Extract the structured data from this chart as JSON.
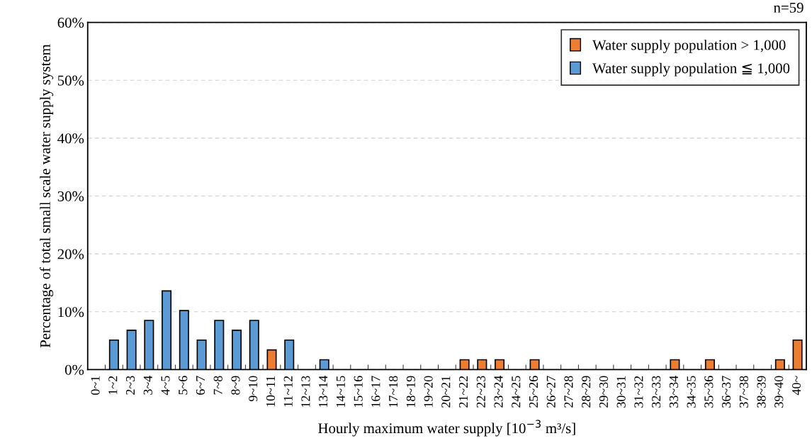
{
  "chart_data": {
    "type": "bar",
    "stacked": true,
    "xlabel": "Hourly maximum water supply [10$^{−3}$ m³/s]",
    "ylabel": "Percentage of total small scale water supply system",
    "annotations": [
      "n=59"
    ],
    "categories": [
      "0~1",
      "1~2",
      "2~3",
      "3~4",
      "4~5",
      "5~6",
      "6~7",
      "7~8",
      "8~9",
      "9~10",
      "10~11",
      "11~12",
      "12~13",
      "13~14",
      "14~15",
      "15~16",
      "16~17",
      "17~18",
      "18~19",
      "19~20",
      "20~21",
      "21~22",
      "22~23",
      "23~24",
      "24~25",
      "25~26",
      "26~27",
      "27~28",
      "28~29",
      "29~30",
      "30~31",
      "31~32",
      "32~33",
      "33~34",
      "34~35",
      "35~36",
      "36~37",
      "37~38",
      "38~39",
      "39~40",
      "40~"
    ],
    "series": [
      {
        "name": "Water supply population > 1,000",
        "color": "#ed7d31",
        "values": [
          null,
          null,
          null,
          null,
          null,
          null,
          null,
          null,
          null,
          null,
          3.4,
          null,
          null,
          null,
          null,
          null,
          null,
          null,
          null,
          null,
          null,
          1.7,
          1.7,
          1.7,
          null,
          1.7,
          null,
          null,
          null,
          null,
          null,
          null,
          null,
          1.7,
          null,
          1.7,
          null,
          null,
          null,
          1.7,
          5.1
        ]
      },
      {
        "name": "Water supply population ≦ 1,000",
        "color": "#5b9bd5",
        "values": [
          null,
          5.1,
          6.8,
          8.5,
          13.6,
          10.2,
          5.1,
          8.5,
          6.8,
          8.5,
          null,
          5.1,
          null,
          1.7,
          null,
          null,
          null,
          null,
          null,
          null,
          null,
          null,
          null,
          null,
          null,
          null,
          null,
          null,
          null,
          null,
          null,
          null,
          null,
          null,
          null,
          null,
          null,
          null,
          null,
          null,
          null
        ]
      }
    ],
    "ylim": [
      0,
      60
    ],
    "yticks": [
      {
        "value": 0,
        "label": "0%"
      },
      {
        "value": 10,
        "label": "10%"
      },
      {
        "value": 20,
        "label": "20%"
      },
      {
        "value": 30,
        "label": "30%"
      },
      {
        "value": 40,
        "label": "40%"
      },
      {
        "value": 50,
        "label": "50%"
      },
      {
        "value": 60,
        "label": "60%"
      }
    ],
    "grid": "y",
    "legend": "top right"
  }
}
